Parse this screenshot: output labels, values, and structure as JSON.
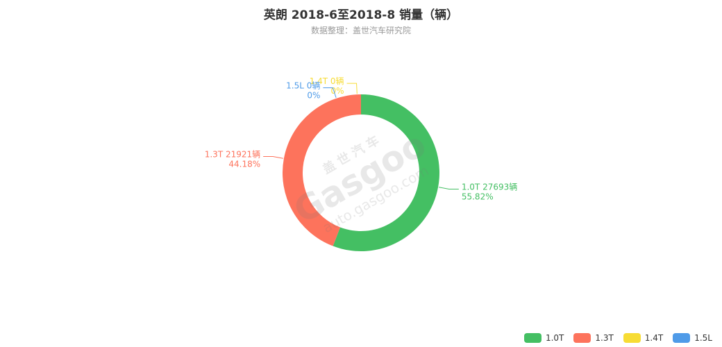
{
  "chart_data": {
    "type": "pie",
    "title": "英朗 2018-6至2018-8 销量（辆）",
    "subtitle": "数据整理：盖世汽车研究院",
    "unit": "辆",
    "donut": true,
    "legend_position": "bottom-right",
    "slices": [
      {
        "name": "1.0T",
        "value": 27693,
        "percent": "55.82%",
        "color": "#44bf63",
        "label": "1.0T 27693辆"
      },
      {
        "name": "1.3T",
        "value": 21921,
        "percent": "44.18%",
        "color": "#fd735c",
        "label": "1.3T 21921辆"
      },
      {
        "name": "1.4T",
        "value": 0,
        "percent": "0%",
        "color": "#f7dc34",
        "label": "1.4T 0辆"
      },
      {
        "name": "1.5L",
        "value": 0,
        "percent": "0%",
        "color": "#4f9be8",
        "label": "1.5L 0辆"
      }
    ]
  },
  "watermark": {
    "brand_cn": "盖世汽车",
    "brand_en": "Gasgoo",
    "url": "auto.gasgoo.com"
  }
}
